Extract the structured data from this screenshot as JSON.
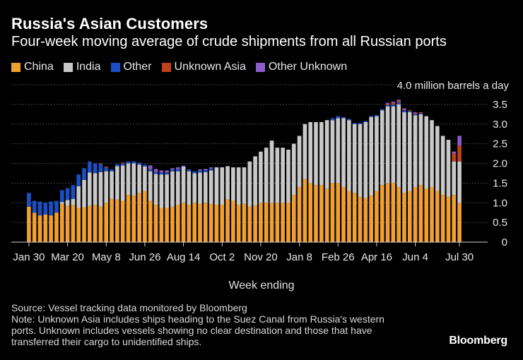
{
  "header": {
    "title": "Russia's Asian Customers",
    "subtitle": "Four-week moving average of crude shipments from all Russian ports"
  },
  "legend": [
    {
      "label": "China",
      "color": "#f0a030"
    },
    {
      "label": "India",
      "color": "#c8c8c8"
    },
    {
      "label": "Other",
      "color": "#1a4fc4"
    },
    {
      "label": "Unknown Asia",
      "color": "#c0401c"
    },
    {
      "label": "Other Unknown",
      "color": "#8a5cc8"
    }
  ],
  "footer": {
    "source": "Source: Vessel tracking data monitored by Bloomberg",
    "note_lines": [
      "Note: Unknown Asia includes ships heading to the Suez Canal from Russia's western",
      "ports. Unknown includes vessels showing no clear destination and those that have",
      "transferred their cargo to unidentified ships."
    ],
    "brand": "Bloomberg"
  },
  "chart_data": {
    "type": "bar",
    "stacked": true,
    "xlabel": "Week ending",
    "ylabel": "",
    "y_unit_label": "4.0 million barrels a day",
    "ylim": [
      0,
      4.0
    ],
    "y_ticks": [
      0,
      0.5,
      1.0,
      1.5,
      2.0,
      2.5,
      3.0,
      3.5
    ],
    "y_tick_labels": [
      "0",
      "0.5",
      "1.0",
      "1.5",
      "2.0",
      "2.5",
      "3.0",
      "3.5"
    ],
    "grid": true,
    "legend_position": "top-left",
    "x_tick_labels": [
      {
        "index": 0,
        "label": "Jan 30"
      },
      {
        "index": 7,
        "label": "Mar 20"
      },
      {
        "index": 14,
        "label": "May 8"
      },
      {
        "index": 21,
        "label": "Jun 26"
      },
      {
        "index": 28,
        "label": "Aug 14"
      },
      {
        "index": 35,
        "label": "Oct 2"
      },
      {
        "index": 42,
        "label": "Nov 20"
      },
      {
        "index": 49,
        "label": "Jan 8"
      },
      {
        "index": 56,
        "label": "Feb 26"
      },
      {
        "index": 63,
        "label": "Apr 16"
      },
      {
        "index": 70,
        "label": "Jun 4"
      },
      {
        "index": 78,
        "label": "Jul 30"
      }
    ],
    "series": [
      {
        "name": "China",
        "color": "#f0a030",
        "values": [
          0.9,
          0.75,
          0.68,
          0.7,
          0.68,
          0.75,
          0.97,
          0.92,
          0.95,
          0.87,
          0.88,
          0.92,
          0.95,
          0.9,
          1.0,
          1.1,
          1.08,
          1.05,
          1.2,
          1.18,
          1.25,
          1.3,
          1.05,
          0.95,
          0.87,
          0.87,
          0.9,
          0.95,
          1.0,
          0.95,
          1.0,
          0.97,
          1.0,
          0.97,
          0.95,
          0.95,
          1.08,
          1.05,
          0.95,
          0.98,
          0.9,
          0.93,
          1.0,
          1.0,
          1.0,
          1.0,
          1.0,
          1.0,
          1.2,
          1.4,
          1.6,
          1.5,
          1.45,
          1.45,
          1.35,
          1.5,
          1.5,
          1.4,
          1.3,
          1.25,
          1.15,
          1.12,
          1.18,
          1.3,
          1.45,
          1.5,
          1.5,
          1.4,
          1.25,
          1.3,
          1.4,
          1.45,
          1.35,
          1.4,
          1.3,
          1.2,
          1.15,
          1.2,
          1.0
        ]
      },
      {
        "name": "India",
        "color": "#c8c8c8",
        "values": [
          0.0,
          0.0,
          0.0,
          0.0,
          0.0,
          0.0,
          0.05,
          0.15,
          0.15,
          0.55,
          0.7,
          0.85,
          0.8,
          0.88,
          0.8,
          0.7,
          0.85,
          0.9,
          0.8,
          0.82,
          0.72,
          0.62,
          0.75,
          0.78,
          0.85,
          0.85,
          0.9,
          0.85,
          0.92,
          0.85,
          0.75,
          0.8,
          0.78,
          0.85,
          0.95,
          0.95,
          0.85,
          0.85,
          0.95,
          0.92,
          1.15,
          1.25,
          1.3,
          1.4,
          1.58,
          1.4,
          1.4,
          1.35,
          1.3,
          1.3,
          1.4,
          1.55,
          1.6,
          1.6,
          1.75,
          1.6,
          1.65,
          1.75,
          1.8,
          1.75,
          1.85,
          1.93,
          2.0,
          1.9,
          1.9,
          1.95,
          1.95,
          2.1,
          2.05,
          2.0,
          1.82,
          1.8,
          1.85,
          1.7,
          1.65,
          1.5,
          1.45,
          0.85,
          1.05
        ]
      },
      {
        "name": "Other",
        "color": "#1a4fc4",
        "values": [
          0.35,
          0.3,
          0.35,
          0.3,
          0.35,
          0.3,
          0.3,
          0.3,
          0.35,
          0.3,
          0.3,
          0.28,
          0.25,
          0.2,
          0.1,
          0.05,
          0.05,
          0.05,
          0.05,
          0.05,
          0.05,
          0.05,
          0.05,
          0.05,
          0.05,
          0.05,
          0.05,
          0.05,
          0.03,
          0.05,
          0.05,
          0.05,
          0.05,
          0.05,
          0.0,
          0.0,
          0.0,
          0.0,
          0.0,
          0.0,
          0.0,
          0.0,
          0.0,
          0.0,
          0.0,
          0.0,
          0.0,
          0.0,
          0.0,
          0.0,
          0.0,
          0.0,
          0.0,
          0.0,
          0.0,
          0.05,
          0.05,
          0.03,
          0.03,
          0.03,
          0.03,
          0.03,
          0.03,
          0.03,
          0.03,
          0.03,
          0.05,
          0.05,
          0.05,
          0.03,
          0.03,
          0.03,
          0.0,
          0.0,
          0.0,
          0.0,
          0.0,
          0.0,
          0.0
        ]
      },
      {
        "name": "Unknown Asia",
        "color": "#c0401c",
        "values": [
          0.0,
          0.0,
          0.0,
          0.0,
          0.0,
          0.0,
          0.0,
          0.0,
          0.0,
          0.0,
          0.0,
          0.0,
          0.0,
          0.02,
          0.02,
          0.0,
          0.0,
          0.02,
          0.0,
          0.0,
          0.0,
          0.0,
          0.0,
          0.0,
          0.0,
          0.0,
          0.0,
          0.0,
          0.0,
          0.0,
          0.0,
          0.0,
          0.0,
          0.0,
          0.0,
          0.0,
          0.0,
          0.0,
          0.0,
          0.0,
          0.0,
          0.0,
          0.0,
          0.0,
          0.0,
          0.0,
          0.0,
          0.0,
          0.0,
          0.0,
          0.0,
          0.0,
          0.0,
          0.0,
          0.0,
          0.0,
          0.0,
          0.0,
          0.0,
          0.0,
          0.0,
          0.0,
          0.0,
          0.0,
          0.0,
          0.03,
          0.04,
          0.04,
          0.02,
          0.02,
          0.02,
          0.02,
          0.0,
          0.0,
          0.0,
          0.0,
          0.0,
          0.2,
          0.4
        ]
      },
      {
        "name": "Other Unknown",
        "color": "#8a5cc8",
        "values": [
          0.0,
          0.0,
          0.0,
          0.0,
          0.0,
          0.0,
          0.0,
          0.0,
          0.0,
          0.0,
          0.0,
          0.0,
          0.0,
          0.0,
          0.0,
          0.0,
          0.0,
          0.0,
          0.0,
          0.0,
          0.0,
          0.0,
          0.1,
          0.08,
          0.05,
          0.05,
          0.03,
          0.05,
          0.0,
          0.0,
          0.0,
          0.03,
          0.03,
          0.03,
          0.0,
          0.0,
          0.0,
          0.0,
          0.0,
          0.0,
          0.0,
          0.0,
          0.0,
          0.0,
          0.0,
          0.0,
          0.0,
          0.0,
          0.0,
          0.0,
          0.0,
          0.0,
          0.0,
          0.0,
          0.0,
          0.0,
          0.0,
          0.0,
          0.0,
          0.0,
          0.0,
          0.0,
          0.0,
          0.0,
          0.0,
          0.03,
          0.03,
          0.03,
          0.03,
          0.0,
          0.03,
          0.0,
          0.0,
          0.0,
          0.0,
          0.0,
          0.0,
          0.05,
          0.25
        ]
      }
    ]
  }
}
